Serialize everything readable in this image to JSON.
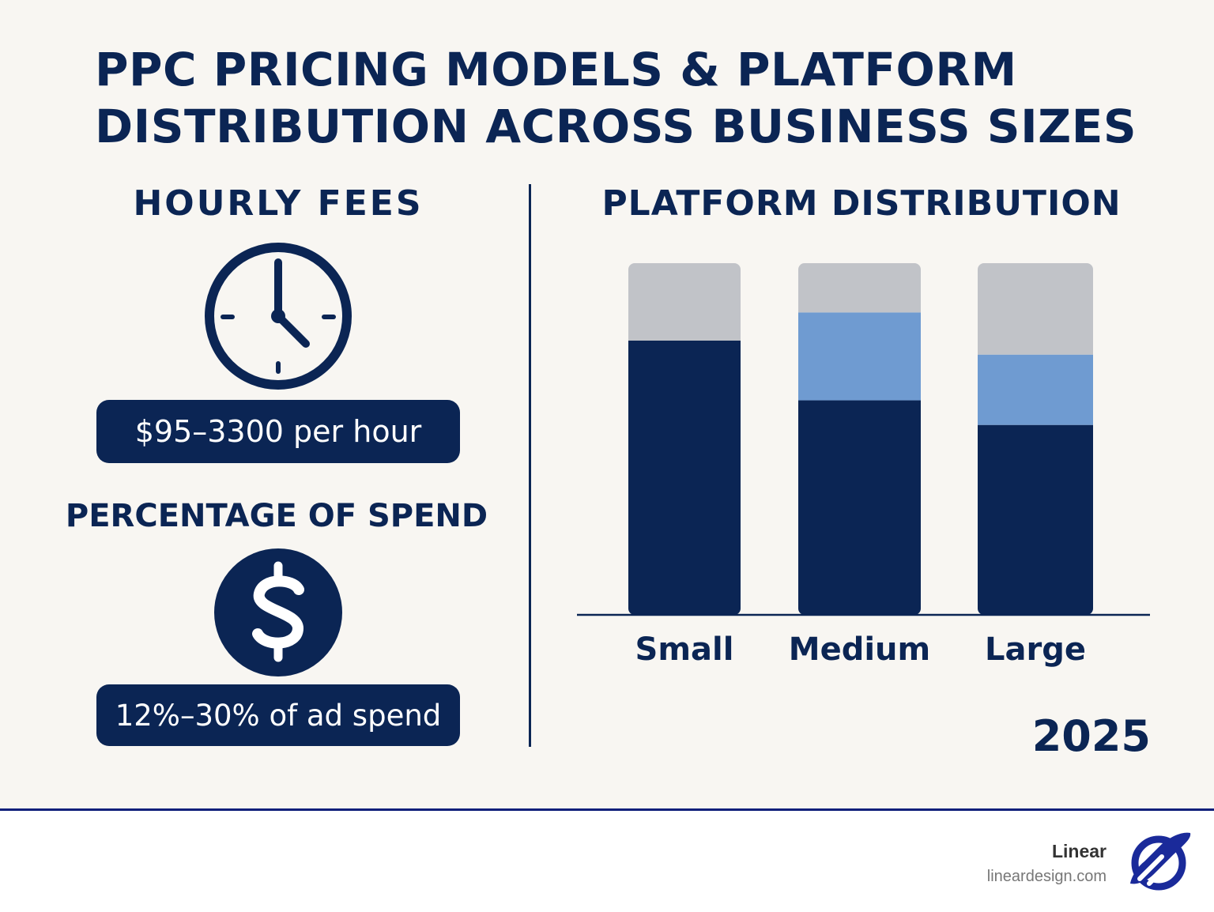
{
  "title": {
    "line1": "PPC PRICING MODELS & PLATFORM",
    "line2": "DISTRIBUTION ACROSS BUSINESS SIZES"
  },
  "hourly": {
    "heading": "HOURLY FEES",
    "icon": "clock-icon",
    "value": "$95–3300 per hour"
  },
  "percentage": {
    "heading": "PERCENTAGE OF SPEND",
    "icon": "dollar-icon",
    "value": "12%–30% of ad spend"
  },
  "platform": {
    "heading": "PLATFORM DISTRIBUTION",
    "year": "2025"
  },
  "chart_data": {
    "type": "bar",
    "stacked": true,
    "title": "PLATFORM DISTRIBUTION",
    "categories": [
      "Small",
      "Medium",
      "Large"
    ],
    "series": [
      {
        "color": "#0b2554",
        "values": [
          78,
          61,
          54
        ]
      },
      {
        "color": "#6f9bd1",
        "values": [
          0,
          25,
          20
        ]
      },
      {
        "color": "#c1c3c8",
        "values": [
          22,
          14,
          26
        ]
      }
    ],
    "ylim": [
      0,
      100
    ],
    "grid": false,
    "legend": "none"
  },
  "colors": {
    "navy": "#0b2554",
    "light_blue": "#6f9bd1",
    "gray": "#c1c3c8",
    "background": "#f8f6f2"
  },
  "footer": {
    "brand": "Linear",
    "url": "lineardesign.com",
    "logo_icon": "rocket-logo-icon"
  }
}
